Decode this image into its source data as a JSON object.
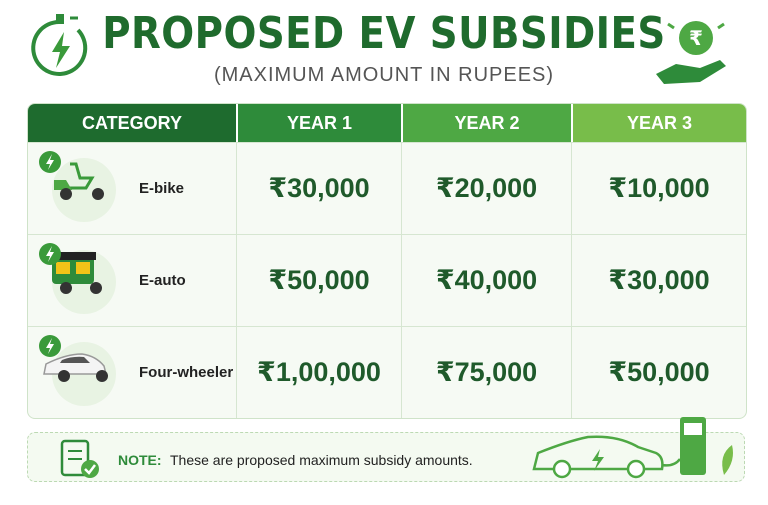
{
  "header": {
    "title": "PROPOSED EV SUBSIDIES",
    "subtitle": "(MAXIMUM AMOUNT IN RUPEES)"
  },
  "table": {
    "columns": [
      "CATEGORY",
      "YEAR 1",
      "YEAR 2",
      "YEAR 3"
    ],
    "rows": [
      [
        "E-bike",
        "₹30,000",
        "₹20,000",
        "₹10,000"
      ],
      [
        "E-auto",
        "₹50,000",
        "₹40,000",
        "₹30,000"
      ],
      [
        "Four-wheeler",
        "₹1,00,000",
        "₹75,000",
        "₹50,000"
      ]
    ]
  },
  "note": {
    "label": "NOTE:",
    "text": "These are proposed maximum subsidy amounts."
  }
}
